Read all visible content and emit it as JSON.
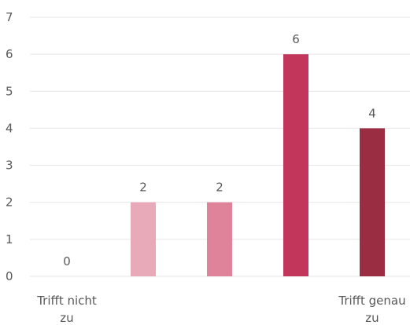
{
  "chart_data": {
    "type": "bar",
    "categories": [
      "Trifft nicht zu",
      "",
      "",
      "",
      "Trifft genau zu"
    ],
    "category_lines": [
      [
        "Trifft nicht",
        "zu"
      ],
      [],
      [],
      [],
      [
        "Trifft genau",
        "zu"
      ]
    ],
    "values": [
      0,
      2,
      2,
      6,
      4
    ],
    "data_labels": [
      "0",
      "2",
      "2",
      "6",
      "4"
    ],
    "bar_colors": [
      "#f2c6d0",
      "#e8aab9",
      "#de8399",
      "#c1365a",
      "#9b2d42"
    ],
    "ylim": [
      0,
      7
    ],
    "yticks": [
      0,
      1,
      2,
      3,
      4,
      5,
      6,
      7
    ],
    "grid": true,
    "gridline_color": "#e6e6e6",
    "text_color": "#595959",
    "title": "",
    "xlabel": "",
    "ylabel": ""
  }
}
